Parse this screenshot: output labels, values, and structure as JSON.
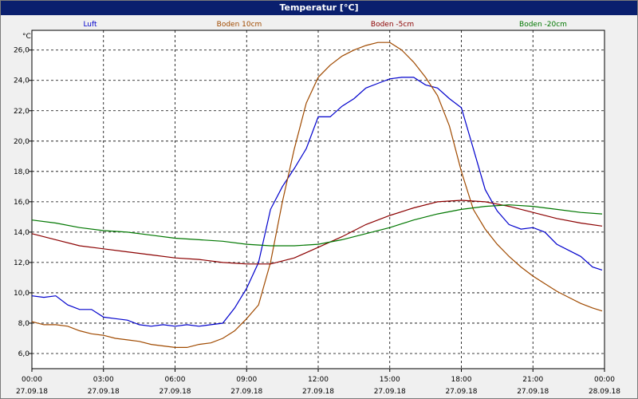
{
  "window": {
    "title": "Temperatur [°C]"
  },
  "chart_data": {
    "type": "line",
    "title": "Temperatur [°C]",
    "ylabel": "°C",
    "ylim": [
      5.0,
      27.3
    ],
    "y_ticks": [
      "6,0",
      "8,0",
      "10,0",
      "12,0",
      "14,0",
      "16,0",
      "18,0",
      "20,0",
      "22,0",
      "24,0",
      "26,0"
    ],
    "x_ticks": [
      {
        "time": "00:00",
        "date": "27.09.18"
      },
      {
        "time": "03:00",
        "date": "27.09.18"
      },
      {
        "time": "06:00",
        "date": "27.09.18"
      },
      {
        "time": "09:00",
        "date": "27.09.18"
      },
      {
        "time": "12:00",
        "date": "27.09.18"
      },
      {
        "time": "15:00",
        "date": "27.09.18"
      },
      {
        "time": "18:00",
        "date": "27.09.18"
      },
      {
        "time": "21:00",
        "date": "27.09.18"
      },
      {
        "time": "00:00",
        "date": "28.09.18"
      }
    ],
    "grid": true,
    "legend_position": "top",
    "series": [
      {
        "name": "Luft",
        "color": "#0000cc",
        "x": [
          0,
          0.5,
          1,
          1.5,
          2,
          2.5,
          3,
          3.5,
          4,
          4.5,
          5,
          5.5,
          6,
          6.5,
          7,
          7.5,
          8,
          8.5,
          9,
          9.5,
          10,
          10.5,
          11,
          11.5,
          12,
          12.5,
          13,
          13.5,
          14,
          14.5,
          15,
          15.5,
          16,
          16.5,
          17,
          17.5,
          18,
          18.5,
          19,
          19.5,
          20,
          20.5,
          21,
          21.5,
          22,
          22.5,
          23,
          23.5,
          23.9
        ],
        "y": [
          9.8,
          9.7,
          9.8,
          9.2,
          8.9,
          8.9,
          8.4,
          8.3,
          8.2,
          7.9,
          7.8,
          7.9,
          7.8,
          7.9,
          7.8,
          7.9,
          8.0,
          9.0,
          10.3,
          12.0,
          15.5,
          17.0,
          18.2,
          19.5,
          21.6,
          21.6,
          22.3,
          22.8,
          23.5,
          23.8,
          24.1,
          24.2,
          24.2,
          23.7,
          23.5,
          22.8,
          22.2,
          19.5,
          16.8,
          15.4,
          14.5,
          14.2,
          14.3,
          14.0,
          13.2,
          12.8,
          12.4,
          11.7,
          11.5
        ]
      },
      {
        "name": "Boden 10cm",
        "color": "#a04a00",
        "x": [
          0,
          0.5,
          1,
          1.5,
          2,
          2.5,
          3,
          3.5,
          4,
          4.5,
          5,
          5.5,
          6,
          6.5,
          7,
          7.5,
          8,
          8.5,
          9,
          9.5,
          10,
          10.5,
          11,
          11.5,
          12,
          12.5,
          13,
          13.5,
          14,
          14.5,
          15,
          15.5,
          16,
          16.5,
          17,
          17.5,
          18,
          18.5,
          19,
          19.5,
          20,
          20.5,
          21,
          21.5,
          22,
          22.5,
          23,
          23.5,
          23.9
        ],
        "y": [
          8.1,
          7.9,
          7.9,
          7.8,
          7.5,
          7.3,
          7.2,
          7.0,
          6.9,
          6.8,
          6.6,
          6.5,
          6.4,
          6.4,
          6.6,
          6.7,
          7.0,
          7.5,
          8.3,
          9.2,
          12.0,
          16.0,
          19.5,
          22.5,
          24.2,
          25.0,
          25.6,
          26.0,
          26.3,
          26.5,
          26.5,
          26.0,
          25.2,
          24.2,
          23.0,
          21.0,
          18.0,
          15.5,
          14.2,
          13.2,
          12.4,
          11.7,
          11.1,
          10.6,
          10.1,
          9.7,
          9.3,
          9.0,
          8.8
        ]
      },
      {
        "name": "Boden -5cm",
        "color": "#8b0000",
        "x": [
          0,
          1,
          2,
          3,
          4,
          5,
          6,
          7,
          8,
          9,
          10,
          11,
          12,
          13,
          14,
          15,
          16,
          17,
          18,
          19,
          20,
          21,
          22,
          23,
          23.9
        ],
        "y": [
          13.9,
          13.5,
          13.1,
          12.9,
          12.7,
          12.5,
          12.3,
          12.2,
          12.0,
          11.9,
          11.9,
          12.3,
          13.0,
          13.7,
          14.5,
          15.1,
          15.6,
          16.0,
          16.1,
          16.0,
          15.7,
          15.3,
          14.9,
          14.6,
          14.4
        ]
      },
      {
        "name": "Boden -20cm",
        "color": "#007700",
        "x": [
          0,
          1,
          2,
          3,
          4,
          5,
          6,
          7,
          8,
          9,
          10,
          11,
          12,
          13,
          14,
          15,
          16,
          17,
          18,
          19,
          20,
          21,
          22,
          23,
          23.9
        ],
        "y": [
          14.8,
          14.6,
          14.3,
          14.1,
          14.0,
          13.8,
          13.6,
          13.5,
          13.4,
          13.2,
          13.1,
          13.1,
          13.2,
          13.5,
          13.9,
          14.3,
          14.8,
          15.2,
          15.5,
          15.7,
          15.8,
          15.7,
          15.5,
          15.3,
          15.2
        ]
      }
    ]
  }
}
